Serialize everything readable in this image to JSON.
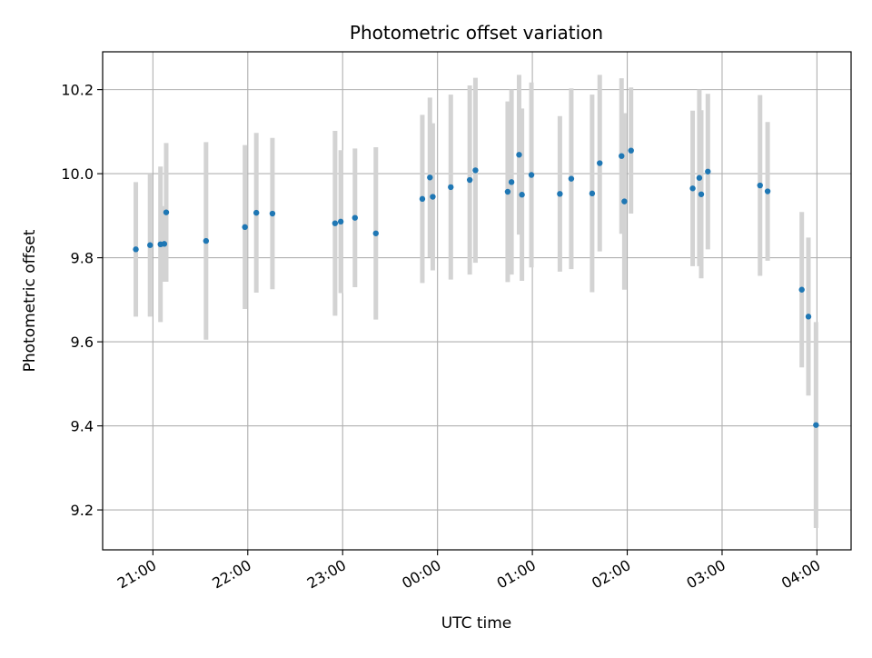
{
  "chart_data": {
    "type": "scatter",
    "title": "Photometric offset variation",
    "xlabel": "UTC time",
    "ylabel": "Photometric offset",
    "x_unit": "UTC time, hours after midnight (negative = before 00:00 of observing night)",
    "xlim": [
      -3.53,
      4.36
    ],
    "ylim": [
      9.105,
      10.29
    ],
    "x_ticks": [
      {
        "value": -3.0,
        "label": "21:00"
      },
      {
        "value": -2.0,
        "label": "22:00"
      },
      {
        "value": -1.0,
        "label": "23:00"
      },
      {
        "value": 0.0,
        "label": "00:00"
      },
      {
        "value": 1.0,
        "label": "01:00"
      },
      {
        "value": 2.0,
        "label": "02:00"
      },
      {
        "value": 3.0,
        "label": "03:00"
      },
      {
        "value": 4.0,
        "label": "04:00"
      }
    ],
    "y_ticks": [
      {
        "value": 9.2,
        "label": "9.2"
      },
      {
        "value": 9.4,
        "label": "9.4"
      },
      {
        "value": 9.6,
        "label": "9.6"
      },
      {
        "value": 9.8,
        "label": "9.8"
      },
      {
        "value": 10.0,
        "label": "10.0"
      },
      {
        "value": 10.2,
        "label": "10.2"
      }
    ],
    "grid": true,
    "colors": {
      "marker": "#1f77b4",
      "errorbar": "#d3d3d3",
      "grid": "#b0b0b0"
    },
    "points": [
      {
        "x": -3.18,
        "y": 9.82,
        "err": 0.16
      },
      {
        "x": -3.03,
        "y": 9.83,
        "err": 0.17
      },
      {
        "x": -2.92,
        "y": 9.832,
        "err": 0.185
      },
      {
        "x": -2.88,
        "y": 9.833,
        "err": 0.09
      },
      {
        "x": -2.86,
        "y": 9.908,
        "err": 0.165
      },
      {
        "x": -2.44,
        "y": 9.84,
        "err": 0.235
      },
      {
        "x": -2.03,
        "y": 9.873,
        "err": 0.195
      },
      {
        "x": -1.91,
        "y": 9.907,
        "err": 0.19
      },
      {
        "x": -1.74,
        "y": 9.905,
        "err": 0.18
      },
      {
        "x": -1.08,
        "y": 9.882,
        "err": 0.22
      },
      {
        "x": -1.02,
        "y": 9.886,
        "err": 0.17
      },
      {
        "x": -0.87,
        "y": 9.895,
        "err": 0.165
      },
      {
        "x": -0.65,
        "y": 9.858,
        "err": 0.205
      },
      {
        "x": -0.16,
        "y": 9.94,
        "err": 0.2
      },
      {
        "x": -0.08,
        "y": 9.991,
        "err": 0.19
      },
      {
        "x": -0.05,
        "y": 9.945,
        "err": 0.175
      },
      {
        "x": 0.14,
        "y": 9.968,
        "err": 0.22
      },
      {
        "x": 0.34,
        "y": 9.985,
        "err": 0.225
      },
      {
        "x": 0.4,
        "y": 10.008,
        "err": 0.22
      },
      {
        "x": 0.74,
        "y": 9.957,
        "err": 0.215
      },
      {
        "x": 0.78,
        "y": 9.98,
        "err": 0.22
      },
      {
        "x": 0.86,
        "y": 10.045,
        "err": 0.19
      },
      {
        "x": 0.89,
        "y": 9.95,
        "err": 0.205
      },
      {
        "x": 0.99,
        "y": 9.997,
        "err": 0.22
      },
      {
        "x": 1.29,
        "y": 9.952,
        "err": 0.185
      },
      {
        "x": 1.41,
        "y": 9.988,
        "err": 0.215
      },
      {
        "x": 1.63,
        "y": 9.953,
        "err": 0.235
      },
      {
        "x": 1.71,
        "y": 10.025,
        "err": 0.21
      },
      {
        "x": 1.94,
        "y": 10.042,
        "err": 0.185
      },
      {
        "x": 1.97,
        "y": 9.934,
        "err": 0.21
      },
      {
        "x": 2.04,
        "y": 10.055,
        "err": 0.15
      },
      {
        "x": 2.69,
        "y": 9.965,
        "err": 0.185
      },
      {
        "x": 2.76,
        "y": 9.99,
        "err": 0.21
      },
      {
        "x": 2.78,
        "y": 9.951,
        "err": 0.2
      },
      {
        "x": 2.85,
        "y": 10.005,
        "err": 0.185
      },
      {
        "x": 3.4,
        "y": 9.972,
        "err": 0.215
      },
      {
        "x": 3.48,
        "y": 9.958,
        "err": 0.165
      },
      {
        "x": 3.84,
        "y": 9.724,
        "err": 0.185
      },
      {
        "x": 3.91,
        "y": 9.66,
        "err": 0.188
      },
      {
        "x": 3.99,
        "y": 9.402,
        "err": 0.245
      }
    ]
  }
}
